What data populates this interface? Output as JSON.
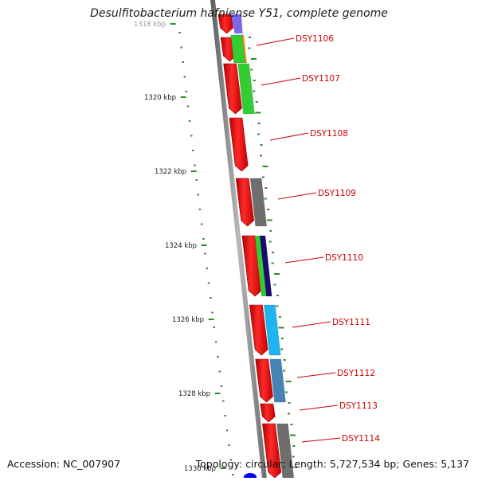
{
  "title": "Desulfitobacterium hafniense Y51, complete genome",
  "footer": {
    "accession": "Accession: NC_007907",
    "summary": "Topology: circular; Length: 5,727,534 bp; Genes: 5,137"
  },
  "colors": {
    "backbone": "#7a7a7a",
    "tick": "#2e8b2e",
    "gene_label": "#cc0000",
    "forward_gene": "#ee0000",
    "cog_purple": "#7b68ee",
    "cog_orange": "#ff8c00",
    "cog_green": "#32cd32",
    "cog_gray": "#6e6e6e",
    "cog_navy": "#1a0d6e",
    "cog_cyan": "#1eb4f0",
    "cog_steelblue": "#4682b4",
    "cog_blue": "#0000ff"
  },
  "scale_labels": [
    "1318 kbp",
    "1320 kbp",
    "1322 kbp",
    "1324 kbp",
    "1326 kbp",
    "1328 kbp",
    "1330 kbp"
  ],
  "genes": [
    {
      "label": "DSY1106",
      "cog": "cog_orange"
    },
    {
      "label": "DSY1107",
      "cog": "cog_green"
    },
    {
      "label": "DSY1108",
      "cog": null
    },
    {
      "label": "DSY1109",
      "cog": "cog_gray"
    },
    {
      "label": "DSY1110",
      "cog": "cog_navy"
    },
    {
      "label": "DSY1111",
      "cog": "cog_cyan"
    },
    {
      "label": "DSY1112",
      "cog": "cog_steelblue"
    },
    {
      "label": "DSY1113",
      "cog": null
    },
    {
      "label": "DSY1114",
      "cog": "cog_gray"
    }
  ]
}
